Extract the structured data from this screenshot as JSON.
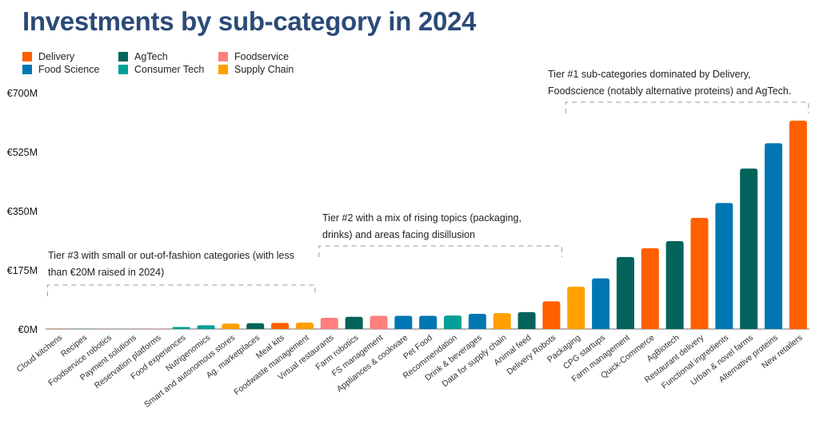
{
  "chart_data": {
    "type": "bar",
    "title": "Investments by sub-category in 2024",
    "xlabel": "",
    "ylabel": "",
    "ylim": [
      0,
      700
    ],
    "yticks": [
      0,
      175,
      350,
      525,
      700
    ],
    "ytick_labels": [
      "€0M",
      "€175M",
      "€350M",
      "€525M",
      "€700M"
    ],
    "grid": false,
    "legend_position": "top-left",
    "legend": [
      {
        "name": "Delivery",
        "color": "#ff5f00"
      },
      {
        "name": "Food Science",
        "color": "#0077b3"
      },
      {
        "name": "AgTech",
        "color": "#03635a"
      },
      {
        "name": "Consumer Tech",
        "color": "#00a099"
      },
      {
        "name": "Foodservice",
        "color": "#ff7f7f"
      },
      {
        "name": "Supply Chain",
        "color": "#ff9f00"
      }
    ],
    "unit": "€M",
    "bars": [
      {
        "category": "Cloud kitchens",
        "value": 0,
        "group": "Delivery"
      },
      {
        "category": "Recipes",
        "value": 0,
        "group": "Consumer Tech"
      },
      {
        "category": "Foodservice robotics",
        "value": 0,
        "group": "Foodservice"
      },
      {
        "category": "Payment solutions",
        "value": 0,
        "group": "Foodservice"
      },
      {
        "category": "Reservation platforms",
        "value": 1,
        "group": "Foodservice"
      },
      {
        "category": "Food experiences",
        "value": 6,
        "group": "Consumer Tech"
      },
      {
        "category": "Nutrigenomics",
        "value": 11,
        "group": "Consumer Tech"
      },
      {
        "category": "Smart and autonomous stores",
        "value": 16,
        "group": "Supply Chain"
      },
      {
        "category": "Ag. marketplaces",
        "value": 17,
        "group": "AgTech"
      },
      {
        "category": "Meal kits",
        "value": 18,
        "group": "Delivery"
      },
      {
        "category": "Foodwaste management",
        "value": 19,
        "group": "Supply Chain"
      },
      {
        "category": "Virtual restaurants",
        "value": 33,
        "group": "Foodservice"
      },
      {
        "category": "Farm robotics",
        "value": 36,
        "group": "AgTech"
      },
      {
        "category": "FS management",
        "value": 39,
        "group": "Foodservice"
      },
      {
        "category": "Appliances & cookware",
        "value": 39,
        "group": "Food Science"
      },
      {
        "category": "Pet Food",
        "value": 39,
        "group": "Food Science"
      },
      {
        "category": "Recommendation",
        "value": 40,
        "group": "Consumer Tech"
      },
      {
        "category": "Drink & beverages",
        "value": 45,
        "group": "Food Science"
      },
      {
        "category": "Data for supply chain",
        "value": 47,
        "group": "Supply Chain"
      },
      {
        "category": "Animal feed",
        "value": 50,
        "group": "AgTech"
      },
      {
        "category": "Delivery Robots",
        "value": 82,
        "group": "Delivery"
      },
      {
        "category": "Packaging",
        "value": 125,
        "group": "Supply Chain"
      },
      {
        "category": "CPG startups",
        "value": 150,
        "group": "Food Science"
      },
      {
        "category": "Farm management",
        "value": 213,
        "group": "AgTech"
      },
      {
        "category": "Quick-Commerce",
        "value": 239,
        "group": "Delivery"
      },
      {
        "category": "AgBiotech",
        "value": 260,
        "group": "AgTech"
      },
      {
        "category": "Restaurant delivery",
        "value": 329,
        "group": "Delivery"
      },
      {
        "category": "Functional ingredients",
        "value": 373,
        "group": "Food Science"
      },
      {
        "category": "Urban & novel farms",
        "value": 475,
        "group": "AgTech"
      },
      {
        "category": "Alternative proteins",
        "value": 550,
        "group": "Food Science"
      },
      {
        "category": "New retailers",
        "value": 617,
        "group": "Delivery"
      }
    ],
    "annotations": [
      {
        "id": "tier3",
        "text_line1": "Tier #3 with small or out-of-fashion categories (with less",
        "text_line2": "than €20M raised in 2024)",
        "span": [
          "Cloud kitchens",
          "Foodwaste management"
        ]
      },
      {
        "id": "tier2",
        "text_line1": "Tier #2 with a mix of rising topics (packaging,",
        "text_line2": "drinks) and areas facing disillusion",
        "span": [
          "Virtual restaurants",
          "Delivery Robots"
        ]
      },
      {
        "id": "tier1",
        "text_line1": "Tier #1 sub-categories dominated by Delivery,",
        "text_line2": "Foodscience (notably alternative proteins) and AgTech.",
        "span": [
          "Packaging",
          "New retailers"
        ]
      }
    ]
  },
  "legend_layout": [
    {
      "name": "Delivery",
      "color": "#ff5f00"
    },
    {
      "name": "AgTech",
      "color": "#03635a"
    },
    {
      "name": "Foodservice",
      "color": "#ff7f7f"
    },
    {
      "name": "Food Science",
      "color": "#0077b3"
    },
    {
      "name": "Consumer Tech",
      "color": "#00a099"
    },
    {
      "name": "Supply Chain",
      "color": "#ff9f00"
    }
  ]
}
